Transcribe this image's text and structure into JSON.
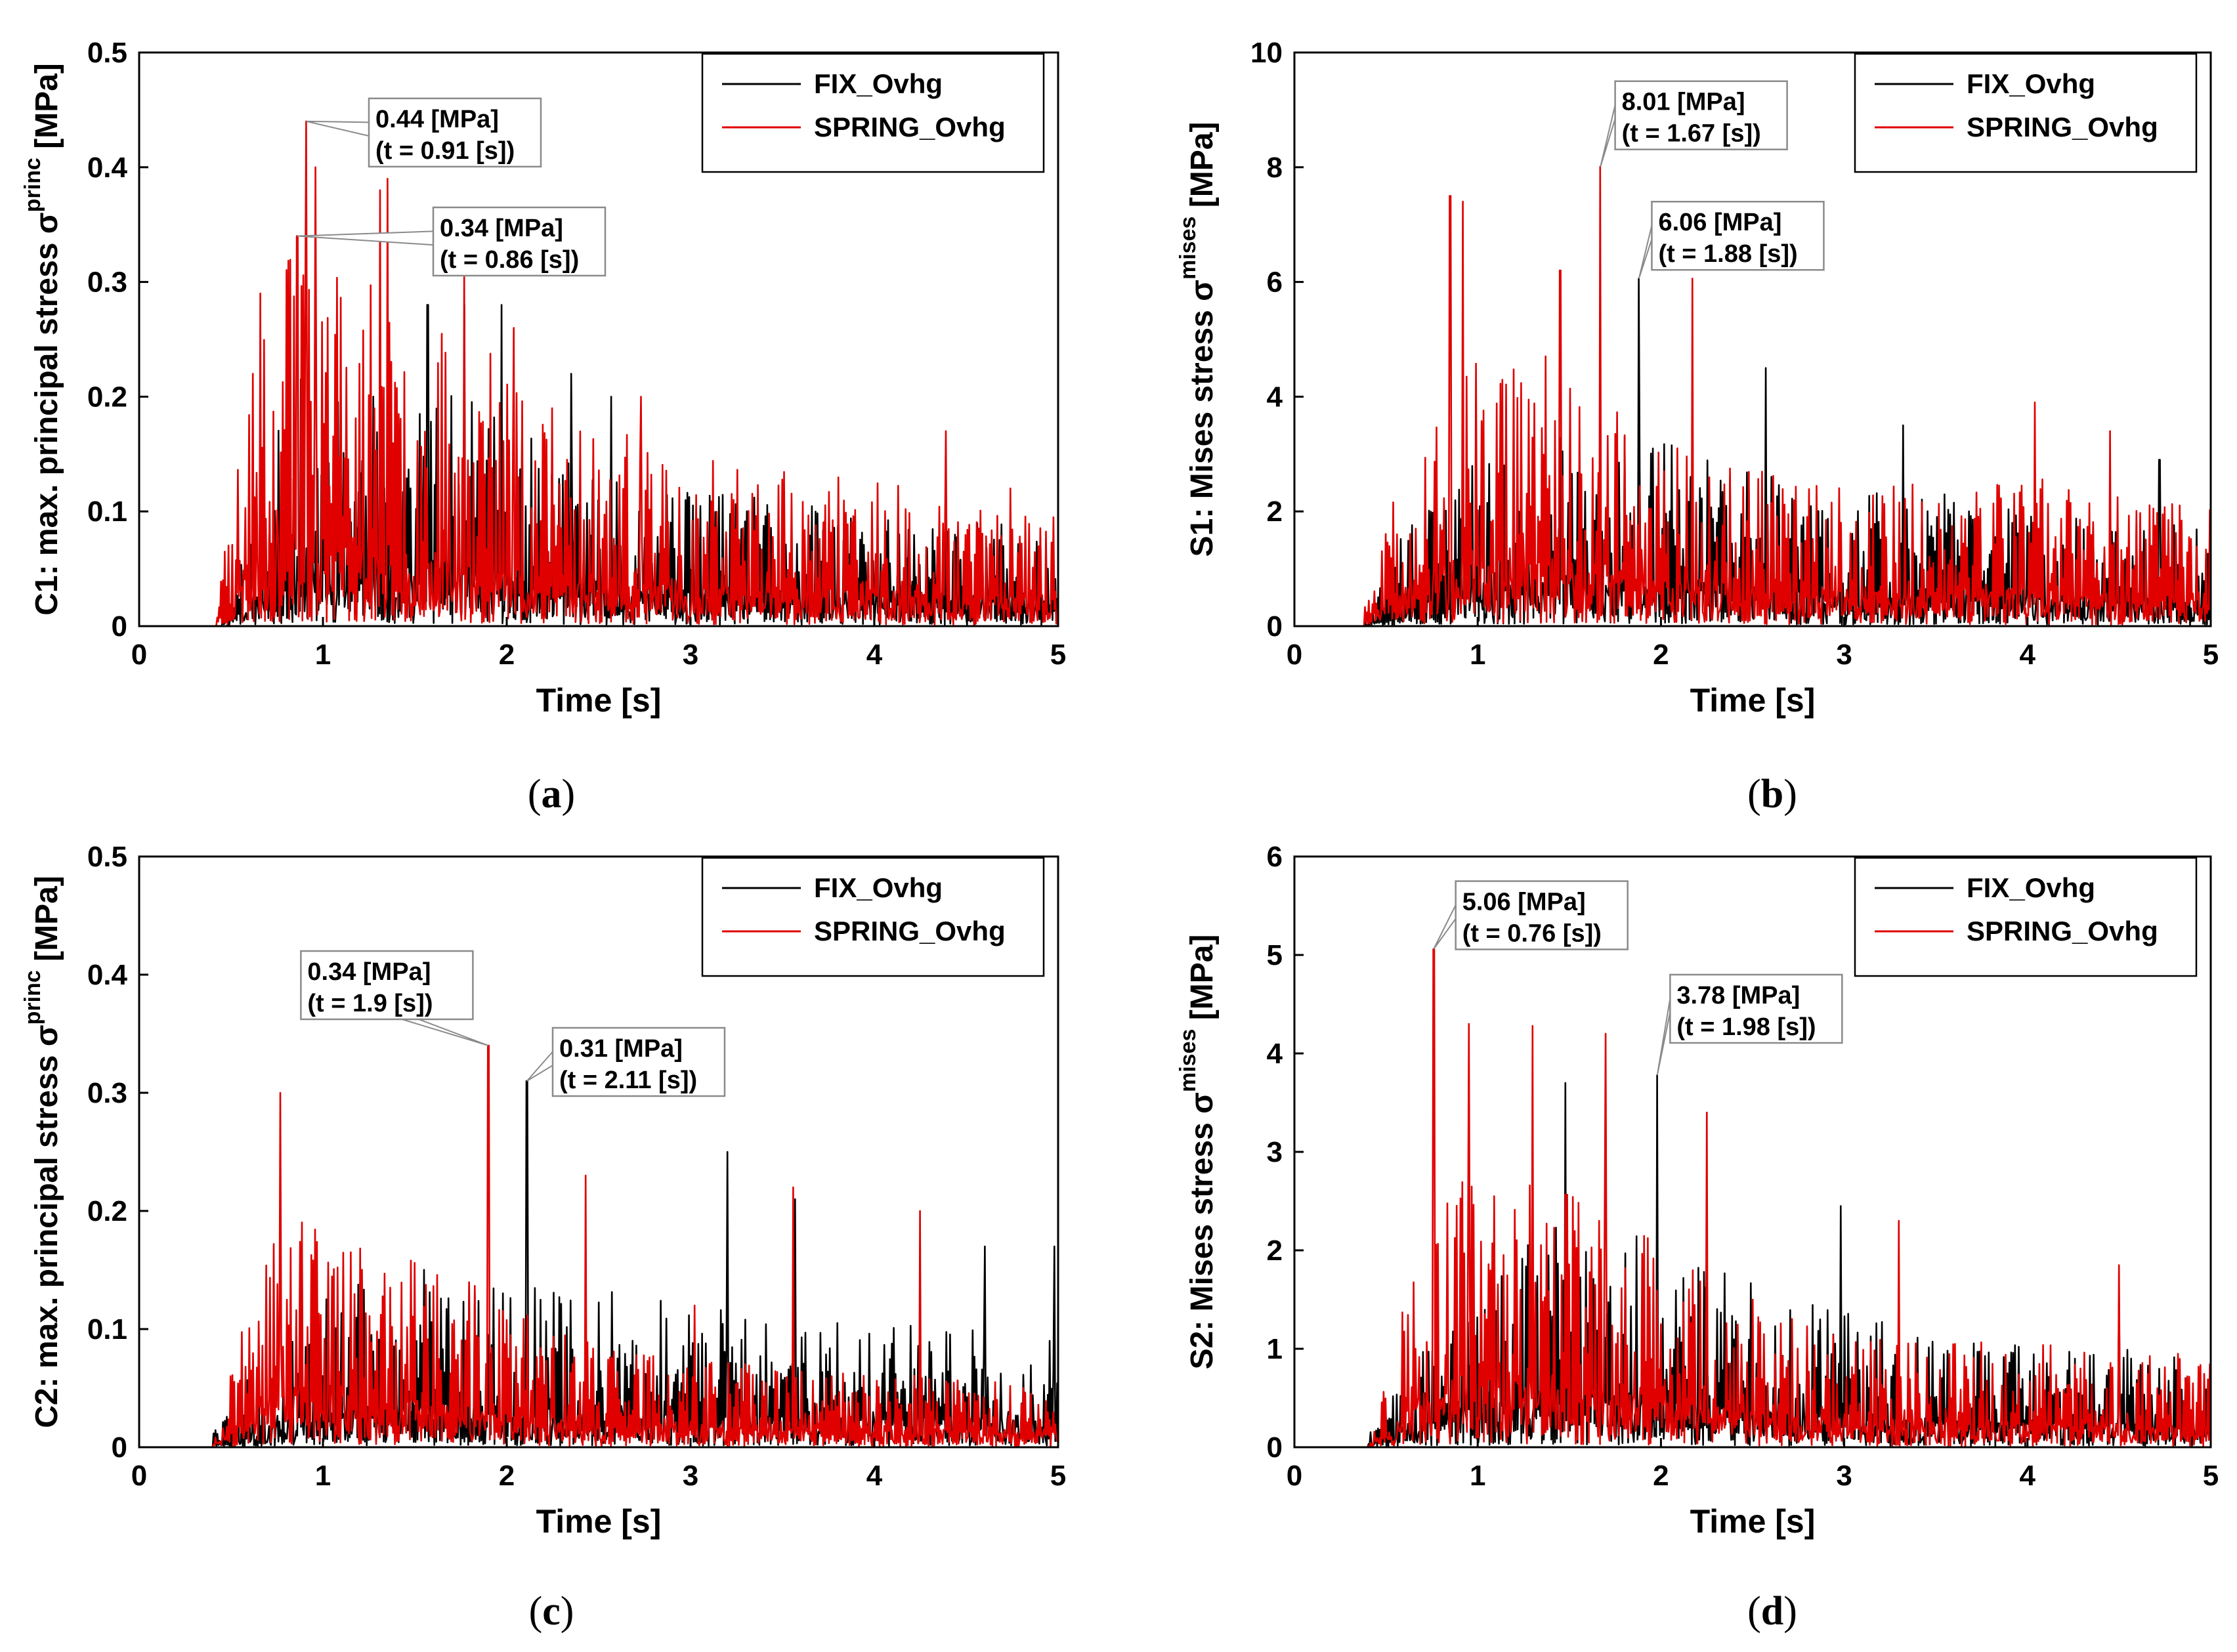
{
  "figure": {
    "legend": {
      "fix": "FIX_Ovhg",
      "spring": "SPRING_Ovhg"
    },
    "colors": {
      "fix": "#000000",
      "spring": "#e00000",
      "box": "#8a8a8a"
    }
  },
  "chart_data": [
    {
      "id": "a",
      "type": "line",
      "caption": "(a)",
      "xlabel": "Time [s]",
      "ylabel": {
        "prefix": "C1: max. principal stress σ",
        "sup": "princ",
        "unit": "[MPa]"
      },
      "xlim": [
        0,
        5
      ],
      "ylim": [
        0,
        0.5
      ],
      "xticks": [
        "0",
        "1",
        "2",
        "3",
        "4",
        "5"
      ],
      "yticks": [
        "0",
        "0.1",
        "0.2",
        "0.3",
        "0.4",
        "0.5"
      ],
      "legend_position": "top-right",
      "series": [
        {
          "name": "FIX_Ovhg",
          "color": "#000000",
          "seed": 11,
          "start": 0.45,
          "envelope": [
            [
              0.45,
              0.02
            ],
            [
              0.6,
              0.1
            ],
            [
              0.9,
              0.22
            ],
            [
              1.2,
              0.2
            ],
            [
              1.5,
              0.2
            ],
            [
              1.8,
              0.19
            ],
            [
              2.1,
              0.16
            ],
            [
              2.6,
              0.12
            ],
            [
              3.2,
              0.11
            ],
            [
              4,
              0.1
            ],
            [
              5,
              0.08
            ]
          ],
          "peaks": [
            [
              1.57,
              0.28
            ],
            [
              1.77,
              0.28
            ],
            [
              1.97,
              0.28
            ],
            [
              2.57,
              0.2
            ],
            [
              2.35,
              0.22
            ]
          ]
        },
        {
          "name": "SPRING_Ovhg",
          "color": "#e00000",
          "seed": 23,
          "start": 0.42,
          "envelope": [
            [
              0.42,
              0.02
            ],
            [
              0.6,
              0.22
            ],
            [
              0.8,
              0.32
            ],
            [
              1.0,
              0.32
            ],
            [
              1.3,
              0.28
            ],
            [
              1.6,
              0.25
            ],
            [
              2.0,
              0.22
            ],
            [
              2.5,
              0.17
            ],
            [
              3,
              0.14
            ],
            [
              4,
              0.12
            ],
            [
              5,
              0.1
            ]
          ],
          "peaks": [
            [
              0.66,
              0.29
            ],
            [
              0.86,
              0.34
            ],
            [
              0.91,
              0.44
            ],
            [
              0.96,
              0.4
            ],
            [
              1.31,
              0.38
            ],
            [
              1.35,
              0.39
            ],
            [
              1.77,
              0.31
            ],
            [
              2.04,
              0.26
            ],
            [
              2.73,
              0.2
            ],
            [
              4.39,
              0.17
            ],
            [
              4.74,
              0.12
            ]
          ]
        }
      ],
      "annotations": [
        {
          "value": "0.44 [MPa]",
          "time": "(t = 0.91 [s])",
          "x": 0.91,
          "y": 0.44,
          "bx": 1.25,
          "by": 0.46
        },
        {
          "value": "0.34 [MPa]",
          "time": "(t = 0.86 [s])",
          "x": 0.86,
          "y": 0.34,
          "bx": 1.6,
          "by": 0.365
        }
      ]
    },
    {
      "id": "b",
      "type": "line",
      "caption": "(b)",
      "xlabel": "Time [s]",
      "ylabel": {
        "prefix": "S1: Mises stress σ",
        "sup": "mises",
        "unit": "[MPa]"
      },
      "xlim": [
        0,
        5
      ],
      "ylim": [
        0,
        10
      ],
      "xticks": [
        "0",
        "1",
        "2",
        "3",
        "4",
        "5"
      ],
      "yticks": [
        "0",
        "2",
        "4",
        "6",
        "8",
        "10"
      ],
      "legend_position": "top-right",
      "series": [
        {
          "name": "FIX_Ovhg",
          "color": "#000000",
          "seed": 37,
          "start": 0.38,
          "envelope": [
            [
              0.38,
              0.2
            ],
            [
              0.6,
              1.6
            ],
            [
              0.9,
              2.6
            ],
            [
              1.4,
              3.2
            ],
            [
              1.9,
              3.2
            ],
            [
              2.3,
              2.8
            ],
            [
              3,
              2.3
            ],
            [
              4,
              2.1
            ],
            [
              5,
              1.6
            ]
          ],
          "peaks": [
            [
              1.88,
              6.06
            ],
            [
              2.57,
              4.5
            ],
            [
              3.32,
              3.5
            ],
            [
              4.72,
              2.9
            ]
          ]
        },
        {
          "name": "SPRING_Ovhg",
          "color": "#e00000",
          "seed": 51,
          "start": 0.38,
          "envelope": [
            [
              0.38,
              0.3
            ],
            [
              0.6,
              3
            ],
            [
              0.9,
              4.3
            ],
            [
              1.3,
              4.6
            ],
            [
              1.7,
              4.2
            ],
            [
              2.1,
              3.2
            ],
            [
              2.6,
              2.6
            ],
            [
              3.2,
              2.4
            ],
            [
              4,
              2.5
            ],
            [
              5,
              2
            ]
          ],
          "peaks": [
            [
              0.85,
              7.5
            ],
            [
              0.92,
              7.4
            ],
            [
              1.67,
              8.01
            ],
            [
              2.17,
              6.06
            ],
            [
              1.45,
              6.2
            ],
            [
              4.04,
              3.9
            ],
            [
              4.45,
              3.4
            ]
          ]
        }
      ],
      "annotations": [
        {
          "value": "8.01 [MPa]",
          "time": "(t = 1.67 [s])",
          "x": 1.67,
          "y": 8.01,
          "bx": 1.75,
          "by": 9.5
        },
        {
          "value": "6.06 [MPa]",
          "time": "(t = 1.88 [s])",
          "x": 1.88,
          "y": 6.06,
          "bx": 1.95,
          "by": 7.4
        }
      ]
    },
    {
      "id": "c",
      "type": "line",
      "caption": "(c)",
      "xlabel": "Time [s]",
      "ylabel": {
        "prefix": "C2: max. principal stress σ",
        "sup": "princ",
        "unit": "[MPa]"
      },
      "xlim": [
        0,
        5
      ],
      "ylim": [
        0,
        0.5
      ],
      "xticks": [
        "0",
        "1",
        "2",
        "3",
        "4",
        "5"
      ],
      "yticks": [
        "0",
        "0.1",
        "0.2",
        "0.3",
        "0.4",
        "0.5"
      ],
      "legend_position": "top-right",
      "series": [
        {
          "name": "FIX_Ovhg",
          "color": "#000000",
          "seed": 63,
          "start": 0.4,
          "envelope": [
            [
              0.4,
              0.01
            ],
            [
              0.6,
              0.06
            ],
            [
              1.0,
              0.12
            ],
            [
              1.5,
              0.15
            ],
            [
              2.0,
              0.14
            ],
            [
              2.5,
              0.13
            ],
            [
              3,
              0.12
            ],
            [
              4,
              0.1
            ],
            [
              5,
              0.09
            ]
          ],
          "peaks": [
            [
              2.11,
              0.31
            ],
            [
              3.2,
              0.25
            ],
            [
              3.57,
              0.21
            ],
            [
              4.6,
              0.17
            ],
            [
              4.98,
              0.17
            ]
          ]
        },
        {
          "name": "SPRING_Ovhg",
          "color": "#e00000",
          "seed": 77,
          "start": 0.4,
          "envelope": [
            [
              0.4,
              0.01
            ],
            [
              0.6,
              0.12
            ],
            [
              0.8,
              0.2
            ],
            [
              1.2,
              0.17
            ],
            [
              1.6,
              0.15
            ],
            [
              2.0,
              0.12
            ],
            [
              2.5,
              0.08
            ],
            [
              3,
              0.07
            ],
            [
              4,
              0.06
            ],
            [
              5,
              0.05
            ]
          ],
          "peaks": [
            [
              0.77,
              0.3
            ],
            [
              1.9,
              0.34
            ],
            [
              2.43,
              0.23
            ],
            [
              3.56,
              0.22
            ],
            [
              4.25,
              0.2
            ],
            [
              3.02,
              0.12
            ]
          ]
        }
      ],
      "annotations": [
        {
          "value": "0.34 [MPa]",
          "time": "(t = 1.9 [s])",
          "x": 1.9,
          "y": 0.34,
          "bx": 0.88,
          "by": 0.42
        },
        {
          "value": "0.31 [MPa]",
          "time": "(t = 2.11 [s])",
          "x": 2.11,
          "y": 0.31,
          "bx": 2.25,
          "by": 0.355
        }
      ]
    },
    {
      "id": "d",
      "type": "line",
      "caption": "(d)",
      "xlabel": "Time [s]",
      "ylabel": {
        "prefix": "S2: Mises stress σ",
        "sup": "mises",
        "unit": "[MPa]"
      },
      "xlim": [
        0,
        5
      ],
      "ylim": [
        0,
        6
      ],
      "xticks": [
        "0",
        "1",
        "2",
        "3",
        "4",
        "5"
      ],
      "yticks": [
        "0",
        "1",
        "2",
        "3",
        "4",
        "5",
        "6"
      ],
      "legend_position": "top-right",
      "series": [
        {
          "name": "FIX_Ovhg",
          "color": "#000000",
          "seed": 89,
          "start": 0.4,
          "envelope": [
            [
              0.4,
              0.1
            ],
            [
              0.6,
              0.8
            ],
            [
              1.0,
              1.8
            ],
            [
              1.5,
              2.2
            ],
            [
              2.0,
              2.0
            ],
            [
              2.5,
              1.6
            ],
            [
              3,
              1.3
            ],
            [
              4,
              1.0
            ],
            [
              5,
              0.9
            ]
          ],
          "peaks": [
            [
              1.98,
              3.78
            ],
            [
              1.48,
              3.7
            ],
            [
              2.98,
              2.45
            ],
            [
              4.5,
              1.5
            ]
          ]
        },
        {
          "name": "SPRING_Ovhg",
          "color": "#e00000",
          "seed": 97,
          "start": 0.4,
          "envelope": [
            [
              0.4,
              0.1
            ],
            [
              0.7,
              2.3
            ],
            [
              0.9,
              2.8
            ],
            [
              1.2,
              2.6
            ],
            [
              1.6,
              2.4
            ],
            [
              2.0,
              2.0
            ],
            [
              2.4,
              1.5
            ],
            [
              3,
              1.1
            ],
            [
              4,
              1.0
            ],
            [
              5,
              0.9
            ]
          ],
          "peaks": [
            [
              0.76,
              5.06
            ],
            [
              0.95,
              4.3
            ],
            [
              1.3,
              4.28
            ],
            [
              1.7,
              4.2
            ],
            [
              2.25,
              3.4
            ],
            [
              3.3,
              2.3
            ],
            [
              4.5,
              1.85
            ]
          ]
        }
      ],
      "annotations": [
        {
          "value": "5.06 [MPa]",
          "time": "(t = 0.76 [s])",
          "x": 0.76,
          "y": 5.06,
          "bx": 0.88,
          "by": 5.75
        },
        {
          "value": "3.78 [MPa]",
          "time": "(t = 1.98 [s])",
          "x": 1.98,
          "y": 3.78,
          "bx": 2.05,
          "by": 4.8
        }
      ]
    }
  ]
}
